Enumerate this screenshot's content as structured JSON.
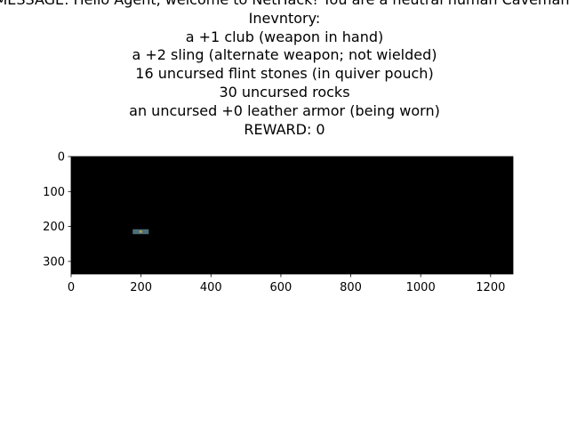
{
  "title": {
    "message": "MESSAGE: Hello Agent, welcome to NetHack!  You are a neutral human Caveman.",
    "inventory_header": "Inevntory:",
    "inventory_items": [
      "a +1 club (weapon in hand)",
      "a +2 sling (alternate weapon; not wielded)",
      "16 uncursed flint stones (in quiver pouch)",
      "30 uncursed rocks",
      "an uncursed +0 leather armor (being worn)"
    ],
    "reward": "REWARD: 0"
  },
  "game_view": {
    "background_color": "#000000",
    "map_width": 1264,
    "map_height": 336,
    "player_sprite": {
      "name": "player-character",
      "x_range": [
        176,
        222
      ],
      "y_range": [
        208,
        222
      ],
      "color": "#4a6f7a",
      "accent_color": "#c8a040"
    }
  },
  "axes": {
    "x_ticks": [
      {
        "value": 0,
        "label": "0"
      },
      {
        "value": 200,
        "label": "200"
      },
      {
        "value": 400,
        "label": "400"
      },
      {
        "value": 600,
        "label": "600"
      },
      {
        "value": 800,
        "label": "800"
      },
      {
        "value": 1000,
        "label": "1000"
      },
      {
        "value": 1200,
        "label": "1200"
      }
    ],
    "y_ticks": [
      {
        "value": 0,
        "label": "0"
      },
      {
        "value": 100,
        "label": "100"
      },
      {
        "value": 200,
        "label": "200"
      },
      {
        "value": 300,
        "label": "300"
      }
    ]
  }
}
